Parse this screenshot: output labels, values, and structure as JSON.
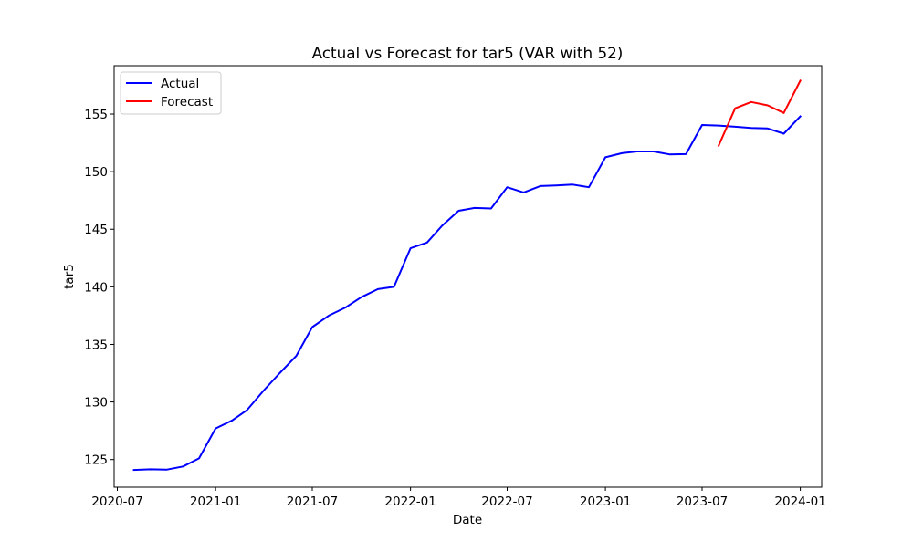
{
  "chart_data": {
    "type": "line",
    "title": "Actual vs Forecast for tar5 (VAR with 52)",
    "xlabel": "Date",
    "ylabel": "tar5",
    "x_type": "date",
    "xlim": [
      "2020-06-25",
      "2024-02-10"
    ],
    "ylim": [
      122.6,
      159.2
    ],
    "x_ticks": [
      "2020-07",
      "2021-01",
      "2021-07",
      "2022-01",
      "2022-07",
      "2023-01",
      "2023-07",
      "2024-01"
    ],
    "y_ticks": [
      "125",
      "130",
      "135",
      "140",
      "145",
      "150",
      "155"
    ],
    "grid": false,
    "legend": {
      "position": "top-left",
      "entries": [
        "Actual",
        "Forecast"
      ]
    },
    "series": [
      {
        "name": "Actual",
        "color": "#0000ff",
        "x": [
          "2020-08-01",
          "2020-09-01",
          "2020-10-01",
          "2020-11-01",
          "2020-12-01",
          "2021-01-01",
          "2021-02-01",
          "2021-03-01",
          "2021-04-01",
          "2021-05-01",
          "2021-06-01",
          "2021-07-01",
          "2021-08-01",
          "2021-09-01",
          "2021-10-01",
          "2021-11-01",
          "2021-12-01",
          "2022-01-01",
          "2022-02-01",
          "2022-03-01",
          "2022-04-01",
          "2022-05-01",
          "2022-06-01",
          "2022-07-01",
          "2022-08-01",
          "2022-09-01",
          "2022-10-01",
          "2022-11-01",
          "2022-12-01",
          "2023-01-01",
          "2023-02-01",
          "2023-03-01",
          "2023-04-01",
          "2023-05-01",
          "2023-06-01",
          "2023-07-01",
          "2023-08-01",
          "2023-09-01",
          "2023-10-01",
          "2023-11-01",
          "2023-12-01",
          "2024-01-01"
        ],
        "values": [
          124.1,
          124.15,
          124.12,
          124.4,
          125.1,
          127.7,
          128.4,
          129.3,
          131.0,
          132.5,
          134.0,
          136.5,
          137.5,
          138.2,
          139.1,
          139.8,
          140.0,
          143.35,
          143.85,
          145.3,
          146.6,
          146.85,
          146.8,
          148.65,
          148.2,
          148.75,
          148.8,
          148.88,
          148.65,
          151.25,
          151.6,
          151.75,
          151.75,
          151.5,
          151.52,
          154.05,
          154.0,
          153.9,
          153.8,
          153.75,
          153.3,
          154.8
        ]
      },
      {
        "name": "Forecast",
        "color": "#ff0000",
        "x": [
          "2023-08-01",
          "2023-09-01",
          "2023-10-01",
          "2023-11-01",
          "2023-12-01",
          "2024-01-01"
        ],
        "values": [
          152.25,
          155.5,
          156.05,
          155.75,
          155.1,
          157.9
        ]
      }
    ]
  }
}
